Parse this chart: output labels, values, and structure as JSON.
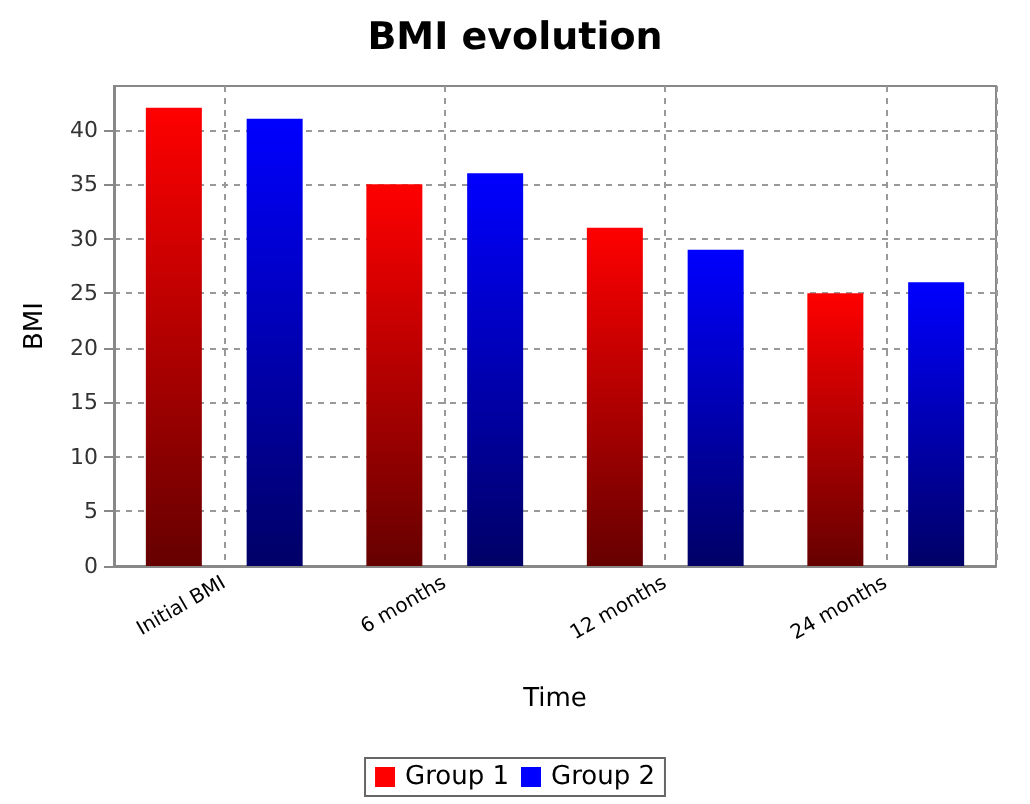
{
  "chart_data": {
    "type": "bar",
    "title": "BMI evolution",
    "xlabel": "Time",
    "ylabel": "BMI",
    "categories": [
      "Initial BMI",
      "6 months",
      "12 months",
      "24 months"
    ],
    "series": [
      {
        "name": "Group 1",
        "color": "#ff0000",
        "values": [
          42,
          35,
          31,
          25
        ]
      },
      {
        "name": "Group 2",
        "color": "#0000ff",
        "values": [
          41,
          36,
          29,
          26
        ]
      }
    ],
    "ylim": [
      0,
      44
    ],
    "yticks": [
      0,
      5,
      10,
      15,
      20,
      25,
      30,
      35,
      40
    ],
    "grid": true,
    "legend": "bottom"
  }
}
